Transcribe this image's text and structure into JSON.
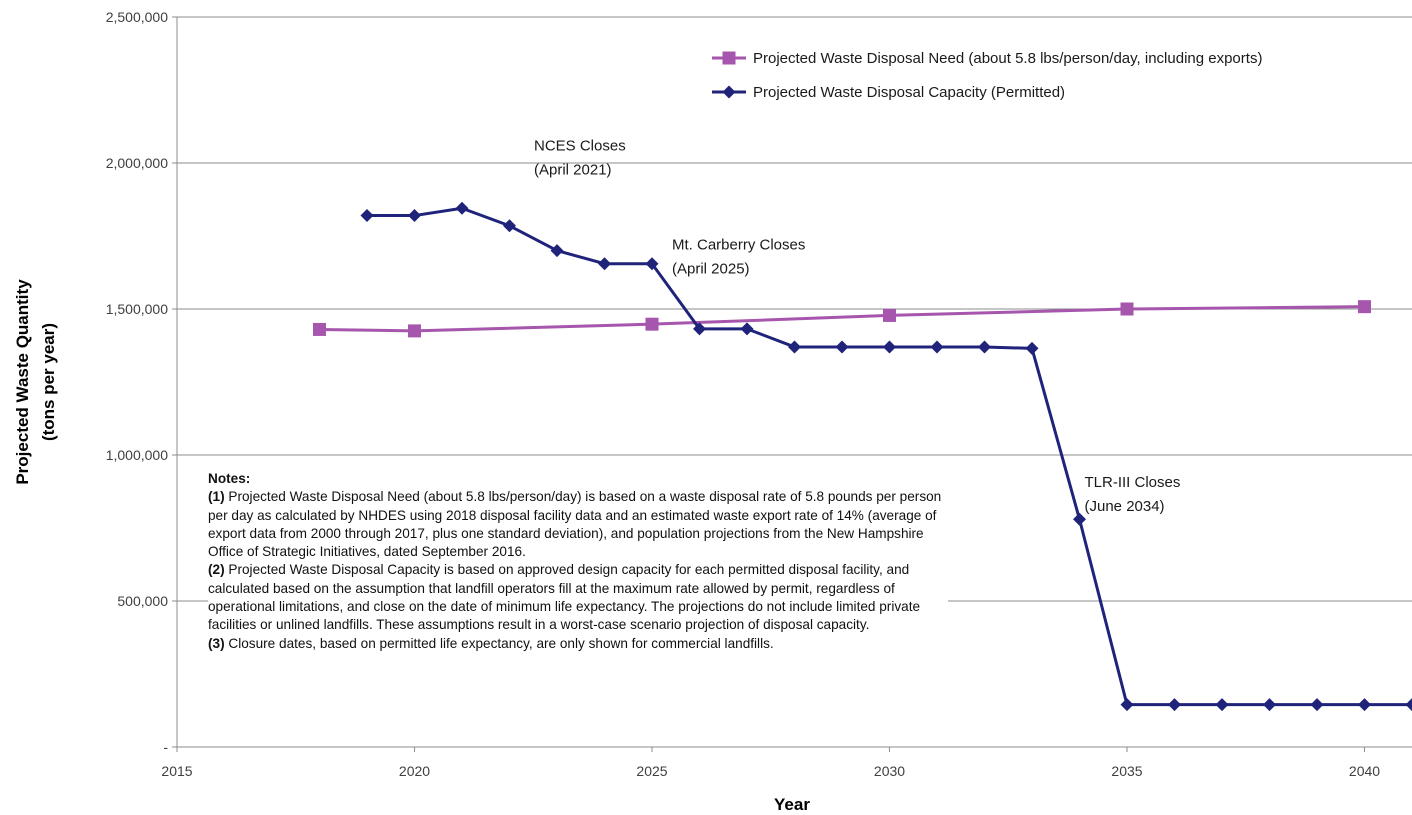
{
  "chart_data": {
    "type": "line",
    "title": "",
    "xlabel": "Year",
    "ylabel": "Projected Waste Quantity",
    "ylabel_sub": "(tons per year)",
    "xlim": [
      2015,
      2041
    ],
    "ylim": [
      0,
      2500000
    ],
    "x_ticks": [
      2015,
      2020,
      2025,
      2030,
      2035,
      2040
    ],
    "x_tick_labels": [
      "2015",
      "2020",
      "2025",
      "2030",
      "2035",
      "2040"
    ],
    "y_ticks": [
      0,
      500000,
      1000000,
      1500000,
      2000000,
      2500000
    ],
    "y_tick_labels": [
      "-",
      "500,000",
      "1,000,000",
      "1,500,000",
      "2,000,000",
      "2,500,000"
    ],
    "grid": "horizontal",
    "legend_position": "top-right",
    "series": [
      {
        "name": "Projected Waste Disposal Need (about 5.8 lbs/person/day, including exports)",
        "color": "#a756ad",
        "marker": "square",
        "x": [
          2018,
          2020,
          2025,
          2030,
          2035,
          2040
        ],
        "y": [
          1430000,
          1425000,
          1448000,
          1478000,
          1500000,
          1508000
        ]
      },
      {
        "name": "Projected Waste Disposal Capacity (Permitted)",
        "color": "#1f237a",
        "marker": "diamond",
        "x": [
          2019,
          2020,
          2021,
          2022,
          2023,
          2024,
          2025,
          2026,
          2027,
          2028,
          2029,
          2030,
          2031,
          2032,
          2033,
          2034,
          2035,
          2036,
          2037,
          2038,
          2039,
          2040,
          2041
        ],
        "y": [
          1820000,
          1820000,
          1845000,
          1785000,
          1700000,
          1655000,
          1655000,
          1432000,
          1432000,
          1370000,
          1370000,
          1370000,
          1370000,
          1370000,
          1365000,
          780000,
          145000,
          145000,
          145000,
          145000,
          145000,
          145000,
          145000
        ]
      }
    ],
    "annotations": [
      {
        "lines": [
          "NCES Closes",
          "(April 2021)"
        ],
        "x": 2021,
        "y": 1845000
      },
      {
        "lines": [
          "Mt. Carberry Closes",
          "(April 2025)"
        ],
        "x": 2025,
        "y": 1655000
      },
      {
        "lines": [
          "TLR-III Closes",
          "(June 2034)"
        ],
        "x": 2034,
        "y": 780000
      }
    ]
  },
  "notes": {
    "title": "Notes:",
    "items": [
      {
        "label": "(1)",
        "text": " Projected Waste Disposal Need (about 5.8 lbs/person/day) is based on a waste disposal rate of 5.8 pounds per person per day as calculated by NHDES using 2018 disposal facility data and an estimated waste export rate of 14% (average of export data from 2000 through 2017, plus one standard deviation), and population projections from the New Hampshire Office of Strategic Initiatives, dated September 2016."
      },
      {
        "label": "(2)",
        "text": " Projected Waste Disposal Capacity is based on approved design capacity for each permitted disposal facility, and calculated based on the assumption that landfill operators fill at the maximum rate allowed by permit, regardless of operational limitations, and close on the date of minimum life expectancy. The projections do not include limited private facilities or unlined landfills. These assumptions result in a worst-case scenario projection of disposal capacity."
      },
      {
        "label": "(3)",
        "text": " Closure dates, based on permitted life expectancy, are only shown for commercial landfills."
      }
    ]
  }
}
